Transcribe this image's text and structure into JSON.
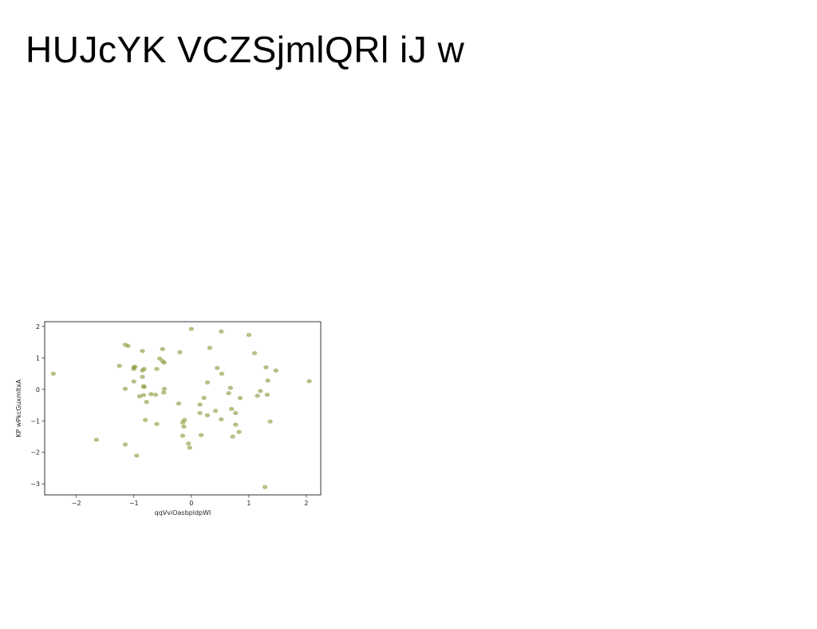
{
  "slide": {
    "title": "HUJcYK VCZSjmlQRl iJ w"
  },
  "chart_data": {
    "type": "scatter",
    "title": "",
    "xlabel": "qqVviOasbpldpWI",
    "ylabel": "KP wPkcGuxmltxA",
    "xlim": [
      -2.55,
      2.25
    ],
    "ylim": [
      -3.35,
      2.15
    ],
    "xticks": [
      -2,
      -1,
      0,
      1,
      2
    ],
    "yticks": [
      2,
      1,
      0,
      -1,
      -2,
      -3
    ],
    "grid": false,
    "legend": "none",
    "marker_color": "#8a9a3b",
    "points": [
      {
        "x": -2.4,
        "y": 0.5
      },
      {
        "x": -1.65,
        "y": -1.6
      },
      {
        "x": -1.25,
        "y": 0.75
      },
      {
        "x": -1.15,
        "y": 1.42
      },
      {
        "x": -1.1,
        "y": 1.38
      },
      {
        "x": -1.15,
        "y": 0.02
      },
      {
        "x": -1.15,
        "y": -1.75
      },
      {
        "x": -1.0,
        "y": 0.7
      },
      {
        "x": -1.0,
        "y": 0.65
      },
      {
        "x": -0.98,
        "y": 0.72
      },
      {
        "x": -1.0,
        "y": 0.25
      },
      {
        "x": -0.95,
        "y": -2.1
      },
      {
        "x": -0.85,
        "y": 1.22
      },
      {
        "x": -0.85,
        "y": 0.6
      },
      {
        "x": -0.82,
        "y": 0.65
      },
      {
        "x": -0.85,
        "y": 0.4
      },
      {
        "x": -0.83,
        "y": 0.1
      },
      {
        "x": -0.82,
        "y": 0.08
      },
      {
        "x": -0.9,
        "y": -0.22
      },
      {
        "x": -0.83,
        "y": -0.18
      },
      {
        "x": -0.78,
        "y": -0.4
      },
      {
        "x": -0.8,
        "y": -0.97
      },
      {
        "x": -0.7,
        "y": -0.15
      },
      {
        "x": -0.62,
        "y": -0.17
      },
      {
        "x": -0.6,
        "y": 0.65
      },
      {
        "x": -0.55,
        "y": 0.98
      },
      {
        "x": -0.5,
        "y": 0.9
      },
      {
        "x": -0.47,
        "y": 0.85
      },
      {
        "x": -0.5,
        "y": 1.28
      },
      {
        "x": -0.47,
        "y": 0.02
      },
      {
        "x": -0.48,
        "y": -0.1
      },
      {
        "x": -0.6,
        "y": -1.1
      },
      {
        "x": -0.2,
        "y": 1.18
      },
      {
        "x": -0.22,
        "y": -0.45
      },
      {
        "x": -0.15,
        "y": -1.05
      },
      {
        "x": -0.12,
        "y": -0.97
      },
      {
        "x": -0.13,
        "y": -1.18
      },
      {
        "x": -0.15,
        "y": -1.47
      },
      {
        "x": -0.05,
        "y": -1.72
      },
      {
        "x": -0.03,
        "y": -1.85
      },
      {
        "x": 0.0,
        "y": 1.92
      },
      {
        "x": 0.15,
        "y": -0.48
      },
      {
        "x": 0.15,
        "y": -0.75
      },
      {
        "x": 0.17,
        "y": -1.45
      },
      {
        "x": 0.22,
        "y": -0.27
      },
      {
        "x": 0.28,
        "y": 0.22
      },
      {
        "x": 0.28,
        "y": -0.82
      },
      {
        "x": 0.32,
        "y": 1.32
      },
      {
        "x": 0.42,
        "y": -0.68
      },
      {
        "x": 0.45,
        "y": 0.68
      },
      {
        "x": 0.52,
        "y": 1.84
      },
      {
        "x": 0.53,
        "y": 0.5
      },
      {
        "x": 0.52,
        "y": -0.95
      },
      {
        "x": 0.65,
        "y": -0.12
      },
      {
        "x": 0.68,
        "y": 0.05
      },
      {
        "x": 0.7,
        "y": -0.62
      },
      {
        "x": 0.72,
        "y": -1.5
      },
      {
        "x": 0.77,
        "y": -0.75
      },
      {
        "x": 0.77,
        "y": -1.12
      },
      {
        "x": 0.83,
        "y": -1.35
      },
      {
        "x": 0.85,
        "y": -0.27
      },
      {
        "x": 1.0,
        "y": 1.73
      },
      {
        "x": 1.1,
        "y": 1.15
      },
      {
        "x": 1.15,
        "y": -0.2
      },
      {
        "x": 1.2,
        "y": -0.05
      },
      {
        "x": 1.28,
        "y": -3.1
      },
      {
        "x": 1.3,
        "y": 0.7
      },
      {
        "x": 1.32,
        "y": -0.17
      },
      {
        "x": 1.33,
        "y": 0.28
      },
      {
        "x": 1.37,
        "y": -1.02
      },
      {
        "x": 1.47,
        "y": 0.6
      },
      {
        "x": 2.05,
        "y": 0.26
      }
    ]
  }
}
